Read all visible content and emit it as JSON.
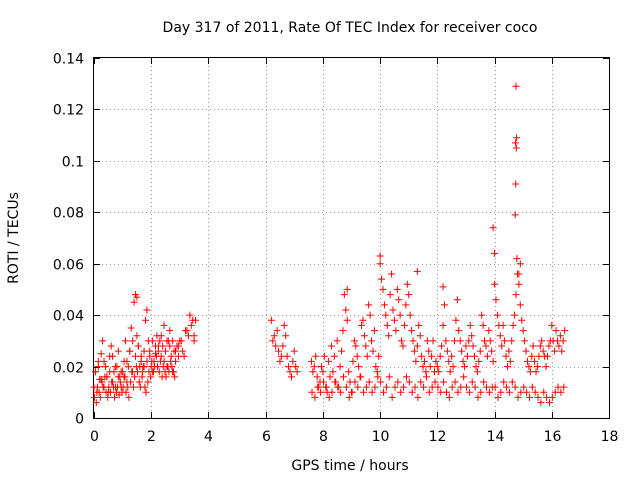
{
  "chart_data": {
    "type": "scatter",
    "title": "Day 317 of 2011, Rate Of TEC Index for receiver coco",
    "xlabel": "GPS time / hours",
    "ylabel": "ROTI / TECUs",
    "xlim": [
      0,
      18
    ],
    "ylim": [
      0,
      0.14
    ],
    "xticks": [
      0,
      2,
      4,
      6,
      8,
      10,
      12,
      14,
      16,
      18
    ],
    "yticks": [
      0,
      0.02,
      0.04,
      0.06,
      0.08,
      0.1,
      0.12,
      0.14
    ],
    "xtick_labels": [
      "0",
      "2",
      "4",
      "6",
      "8",
      "10",
      "12",
      "14",
      "16",
      "18"
    ],
    "ytick_labels": [
      "0",
      "0.02",
      "0.04",
      "0.06",
      "0.08",
      "0.1",
      "0.12",
      "0.14"
    ],
    "grid": true,
    "marker": "+",
    "color": "#ff0000",
    "series": [
      {
        "name": "ROTI",
        "x": [
          0.0,
          0.05,
          0.1,
          0.15,
          0.2,
          0.25,
          0.3,
          0.35,
          0.4,
          0.45,
          0.5,
          0.55,
          0.6,
          0.65,
          0.7,
          0.75,
          0.8,
          0.85,
          0.9,
          0.95,
          1.0,
          1.05,
          1.1,
          1.15,
          1.2,
          1.25,
          1.3,
          1.35,
          1.4,
          1.45,
          1.5,
          1.55,
          1.6,
          1.65,
          1.7,
          1.75,
          1.8,
          1.85,
          1.9,
          1.95,
          2.0,
          2.05,
          2.1,
          2.15,
          2.2,
          2.25,
          2.3,
          2.35,
          2.4,
          2.45,
          2.5,
          2.55,
          2.6,
          2.65,
          2.7,
          2.75,
          2.8,
          2.85,
          2.9,
          2.95,
          3.0,
          3.1,
          3.2,
          3.3,
          3.4,
          3.5,
          3.55,
          0.02,
          0.08,
          0.12,
          0.18,
          0.22,
          0.28,
          0.32,
          0.38,
          0.42,
          0.48,
          0.52,
          0.58,
          0.62,
          0.68,
          0.72,
          0.78,
          0.82,
          0.88,
          0.92,
          0.98,
          1.02,
          1.08,
          1.12,
          1.18,
          1.22,
          1.28,
          1.32,
          1.38,
          1.42,
          1.48,
          1.52,
          1.58,
          1.62,
          1.68,
          1.72,
          1.78,
          1.82,
          1.88,
          1.92,
          1.98,
          2.02,
          2.08,
          2.12,
          2.18,
          2.22,
          2.28,
          2.32,
          2.38,
          2.42,
          2.48,
          2.52,
          2.58,
          2.62,
          2.68,
          2.72,
          2.78,
          2.82,
          0.05,
          0.15,
          0.25,
          0.35,
          0.45,
          0.55,
          0.65,
          0.75,
          0.85,
          0.95,
          1.05,
          1.15,
          1.25,
          1.35,
          1.45,
          1.5,
          1.55,
          1.65,
          1.75,
          1.85,
          1.95,
          2.05,
          2.15,
          2.25,
          2.35,
          2.45,
          2.55,
          2.65,
          2.75,
          2.85,
          2.95,
          3.05,
          3.15,
          3.25,
          3.35,
          3.45,
          3.5,
          6.2,
          6.25,
          6.3,
          6.35,
          6.4,
          6.45,
          6.5,
          6.55,
          6.6,
          6.65,
          6.7,
          6.75,
          6.8,
          6.85,
          6.9,
          6.95,
          7.0,
          7.05,
          7.1,
          7.6,
          7.65,
          7.7,
          7.75,
          7.8,
          7.85,
          7.9,
          7.95,
          8.0,
          8.05,
          8.1,
          8.15,
          8.2,
          8.25,
          8.3,
          8.35,
          8.4,
          8.45,
          8.5,
          8.55,
          8.6,
          8.65,
          8.7,
          8.75,
          8.8,
          8.85,
          8.9,
          8.95,
          9.0,
          9.05,
          9.1,
          9.15,
          9.2,
          9.25,
          9.3,
          9.35,
          9.4,
          9.45,
          9.5,
          9.55,
          9.6,
          9.65,
          9.7,
          9.75,
          9.8,
          9.85,
          9.9,
          9.95,
          7.62,
          7.72,
          7.82,
          7.92,
          8.02,
          8.12,
          8.22,
          8.32,
          8.42,
          8.52,
          8.62,
          8.72,
          8.82,
          8.92,
          9.02,
          9.12,
          9.22,
          9.32,
          9.42,
          9.52,
          9.62,
          9.72,
          9.82,
          9.92,
          10.0,
          10.05,
          10.1,
          10.15,
          10.2,
          10.25,
          10.3,
          10.35,
          10.4,
          10.45,
          10.5,
          10.55,
          10.6,
          10.65,
          10.7,
          10.75,
          10.8,
          10.85,
          10.9,
          10.95,
          11.0,
          11.05,
          11.1,
          11.15,
          11.2,
          11.25,
          11.3,
          11.35,
          11.4,
          11.45,
          11.5,
          11.55,
          11.6,
          11.65,
          11.7,
          11.75,
          11.8,
          11.85,
          11.9,
          11.95,
          10.02,
          10.12,
          10.22,
          10.32,
          10.42,
          10.52,
          10.62,
          10.72,
          10.82,
          10.92,
          11.02,
          11.12,
          11.22,
          11.32,
          11.42,
          11.52,
          11.62,
          11.72,
          11.82,
          11.92,
          12.0,
          12.05,
          12.1,
          12.15,
          12.2,
          12.25,
          12.3,
          12.35,
          12.4,
          12.45,
          12.5,
          12.55,
          12.6,
          12.65,
          12.7,
          12.75,
          12.8,
          12.85,
          12.9,
          12.95,
          13.0,
          13.05,
          13.1,
          13.15,
          13.2,
          13.25,
          13.3,
          13.35,
          13.4,
          13.45,
          13.5,
          13.55,
          13.6,
          13.65,
          13.7,
          13.75,
          13.8,
          13.85,
          13.9,
          13.95,
          12.02,
          12.12,
          12.22,
          12.32,
          12.42,
          12.52,
          12.62,
          12.72,
          12.82,
          12.92,
          13.02,
          13.12,
          13.22,
          13.32,
          13.42,
          13.52,
          13.62,
          13.72,
          13.82,
          13.92,
          14.0,
          14.05,
          14.1,
          14.15,
          14.2,
          14.25,
          14.3,
          14.35,
          14.4,
          14.45,
          14.5,
          14.55,
          14.6,
          14.65,
          14.7,
          14.75,
          14.8,
          14.85,
          14.9,
          14.95,
          15.0,
          15.05,
          15.1,
          15.15,
          15.2,
          15.25,
          15.3,
          15.35,
          15.4,
          15.45,
          15.5,
          15.55,
          15.6,
          15.65,
          15.7,
          15.75,
          15.8,
          15.85,
          15.9,
          15.95,
          14.02,
          14.12,
          14.22,
          14.32,
          14.42,
          14.52,
          14.62,
          14.72,
          14.82,
          14.92,
          15.02,
          15.12,
          15.22,
          15.32,
          15.42,
          15.52,
          15.62,
          15.72,
          15.82,
          15.92,
          16.0,
          16.05,
          16.1,
          16.15,
          16.2,
          16.25,
          16.3,
          16.35,
          16.4,
          16.45,
          16.02,
          16.12,
          16.22,
          16.32,
          16.42,
          14.75,
          14.77,
          14.73,
          14.76,
          14.74,
          14.72,
          14.78,
          13.95,
          14.0,
          14.9,
          14.85,
          12.2,
          11.3,
          10.0,
          8.85
        ],
        "y": [
          0.012,
          0.018,
          0.01,
          0.022,
          0.015,
          0.025,
          0.03,
          0.012,
          0.02,
          0.016,
          0.01,
          0.024,
          0.028,
          0.014,
          0.018,
          0.012,
          0.02,
          0.026,
          0.016,
          0.012,
          0.018,
          0.022,
          0.03,
          0.014,
          0.02,
          0.026,
          0.035,
          0.018,
          0.045,
          0.024,
          0.032,
          0.028,
          0.02,
          0.022,
          0.018,
          0.026,
          0.038,
          0.042,
          0.03,
          0.024,
          0.02,
          0.018,
          0.022,
          0.028,
          0.032,
          0.026,
          0.03,
          0.024,
          0.028,
          0.022,
          0.026,
          0.02,
          0.03,
          0.028,
          0.024,
          0.018,
          0.026,
          0.022,
          0.028,
          0.024,
          0.03,
          0.026,
          0.034,
          0.032,
          0.036,
          0.03,
          0.038,
          0.008,
          0.006,
          0.012,
          0.01,
          0.008,
          0.014,
          0.012,
          0.016,
          0.01,
          0.008,
          0.012,
          0.01,
          0.014,
          0.012,
          0.008,
          0.01,
          0.012,
          0.009,
          0.014,
          0.01,
          0.012,
          0.016,
          0.01,
          0.012,
          0.008,
          0.014,
          0.018,
          0.012,
          0.016,
          0.02,
          0.018,
          0.014,
          0.012,
          0.016,
          0.02,
          0.012,
          0.01,
          0.014,
          0.018,
          0.016,
          0.022,
          0.018,
          0.02,
          0.024,
          0.02,
          0.018,
          0.022,
          0.016,
          0.02,
          0.018,
          0.016,
          0.02,
          0.018,
          0.022,
          0.02,
          0.018,
          0.016,
          0.018,
          0.02,
          0.015,
          0.022,
          0.016,
          0.018,
          0.024,
          0.02,
          0.016,
          0.018,
          0.016,
          0.022,
          0.026,
          0.03,
          0.048,
          0.047,
          0.028,
          0.024,
          0.02,
          0.022,
          0.026,
          0.03,
          0.025,
          0.028,
          0.032,
          0.036,
          0.03,
          0.034,
          0.03,
          0.026,
          0.028,
          0.03,
          0.024,
          0.034,
          0.04,
          0.038,
          0.032,
          0.038,
          0.03,
          0.032,
          0.028,
          0.034,
          0.026,
          0.022,
          0.024,
          0.028,
          0.036,
          0.032,
          0.024,
          0.02,
          0.018,
          0.016,
          0.022,
          0.026,
          0.02,
          0.018,
          0.022,
          0.018,
          0.02,
          0.024,
          0.016,
          0.012,
          0.014,
          0.02,
          0.018,
          0.024,
          0.012,
          0.01,
          0.022,
          0.016,
          0.028,
          0.018,
          0.024,
          0.014,
          0.03,
          0.012,
          0.02,
          0.026,
          0.034,
          0.048,
          0.042,
          0.038,
          0.018,
          0.014,
          0.01,
          0.022,
          0.03,
          0.028,
          0.024,
          0.02,
          0.016,
          0.036,
          0.038,
          0.032,
          0.028,
          0.024,
          0.044,
          0.04,
          0.03,
          0.026,
          0.034,
          0.02,
          0.018,
          0.024,
          0.01,
          0.008,
          0.012,
          0.01,
          0.014,
          0.012,
          0.008,
          0.01,
          0.014,
          0.012,
          0.01,
          0.016,
          0.012,
          0.008,
          0.01,
          0.014,
          0.012,
          0.016,
          0.01,
          0.012,
          0.014,
          0.01,
          0.012,
          0.016,
          0.06,
          0.054,
          0.05,
          0.044,
          0.04,
          0.036,
          0.032,
          0.048,
          0.056,
          0.042,
          0.038,
          0.034,
          0.05,
          0.046,
          0.04,
          0.03,
          0.028,
          0.036,
          0.044,
          0.052,
          0.048,
          0.04,
          0.034,
          0.03,
          0.026,
          0.022,
          0.028,
          0.036,
          0.032,
          0.024,
          0.02,
          0.022,
          0.018,
          0.03,
          0.026,
          0.02,
          0.024,
          0.03,
          0.018,
          0.022,
          0.014,
          0.01,
          0.012,
          0.016,
          0.008,
          0.012,
          0.014,
          0.01,
          0.012,
          0.016,
          0.014,
          0.01,
          0.012,
          0.008,
          0.014,
          0.012,
          0.016,
          0.01,
          0.012,
          0.014,
          0.02,
          0.018,
          0.024,
          0.028,
          0.036,
          0.044,
          0.03,
          0.026,
          0.022,
          0.018,
          0.024,
          0.02,
          0.03,
          0.038,
          0.046,
          0.034,
          0.03,
          0.026,
          0.022,
          0.02,
          0.028,
          0.024,
          0.03,
          0.036,
          0.032,
          0.028,
          0.024,
          0.02,
          0.018,
          0.022,
          0.026,
          0.04,
          0.036,
          0.03,
          0.028,
          0.024,
          0.034,
          0.03,
          0.026,
          0.022,
          0.012,
          0.01,
          0.014,
          0.01,
          0.008,
          0.012,
          0.014,
          0.01,
          0.012,
          0.016,
          0.012,
          0.01,
          0.014,
          0.012,
          0.008,
          0.01,
          0.014,
          0.012,
          0.01,
          0.012,
          0.052,
          0.046,
          0.04,
          0.036,
          0.032,
          0.028,
          0.036,
          0.03,
          0.024,
          0.02,
          0.026,
          0.022,
          0.03,
          0.036,
          0.04,
          0.048,
          0.056,
          0.052,
          0.044,
          0.038,
          0.034,
          0.03,
          0.026,
          0.022,
          0.02,
          0.018,
          0.024,
          0.028,
          0.022,
          0.018,
          0.02,
          0.024,
          0.028,
          0.03,
          0.026,
          0.024,
          0.02,
          0.024,
          0.028,
          0.03,
          0.012,
          0.008,
          0.01,
          0.014,
          0.012,
          0.01,
          0.014,
          0.012,
          0.008,
          0.01,
          0.012,
          0.01,
          0.008,
          0.012,
          0.01,
          0.008,
          0.006,
          0.01,
          0.008,
          0.006,
          0.036,
          0.03,
          0.026,
          0.034,
          0.03,
          0.028,
          0.032,
          0.026,
          0.03,
          0.034,
          0.008,
          0.01,
          0.012,
          0.01,
          0.012,
          0.129,
          0.109,
          0.107,
          0.105,
          0.091,
          0.079,
          0.062,
          0.074,
          0.064,
          0.06,
          0.056,
          0.051,
          0.057,
          0.063,
          0.05
        ]
      }
    ]
  }
}
